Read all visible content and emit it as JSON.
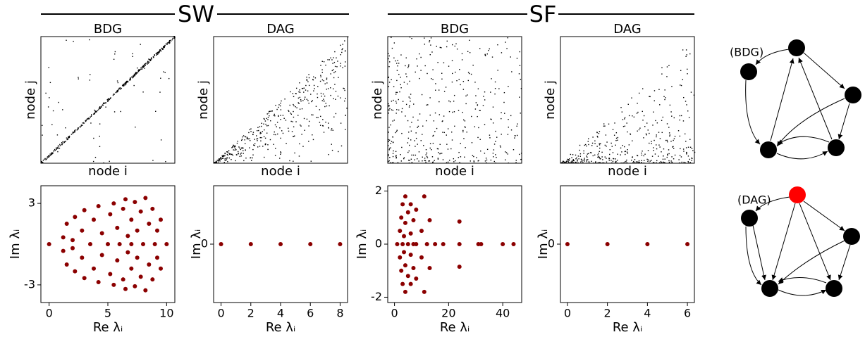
{
  "headers": [
    "SW",
    "SF"
  ],
  "diagrams": [
    {
      "label": "(BDG)"
    },
    {
      "label": "(DAG)"
    }
  ],
  "chart_data": [
    {
      "type": "matrix",
      "title": "BDG",
      "xlabel": "node i",
      "ylabel": "node j"
    },
    {
      "type": "matrix",
      "title": "DAG",
      "xlabel": "node i",
      "ylabel": "node j"
    },
    {
      "type": "matrix",
      "title": "BDG",
      "xlabel": "node i",
      "ylabel": "node j"
    },
    {
      "type": "matrix",
      "title": "DAG",
      "xlabel": "node i",
      "ylabel": "node j"
    },
    {
      "type": "scatter",
      "xlabel": "Re λᵢ",
      "ylabel": "Im λᵢ",
      "color": "#8b0000",
      "x": [
        0,
        1.2,
        1.2,
        1.5,
        1.5,
        2,
        2,
        2.2,
        2.2,
        2.8,
        2.8,
        3,
        3,
        3.5,
        3.8,
        3.8,
        4.2,
        4.2,
        4.5,
        4.5,
        5,
        5.2,
        5.2,
        5.5,
        5.5,
        5.8,
        5.8,
        6,
        6.3,
        6.3,
        6.5,
        6.5,
        6.7,
        6.7,
        7,
        7,
        7,
        7.3,
        7.3,
        7.5,
        7.5,
        7.8,
        7.8,
        8,
        8.2,
        8.2,
        8.5,
        8.5,
        8.8,
        8.8,
        9,
        9.2,
        9.2,
        9.5,
        9.5,
        10
      ],
      "y": [
        0,
        0.5,
        -0.5,
        1.5,
        -1.5,
        0.3,
        -0.3,
        2,
        -2,
        1,
        -1,
        2.5,
        -2.5,
        0,
        1.8,
        -1.8,
        2.8,
        -2.8,
        0.8,
        -0.8,
        0,
        2.2,
        -2.2,
        3,
        -3,
        1.2,
        -1.2,
        0,
        2.6,
        -2.6,
        3.3,
        -3.3,
        0.6,
        -0.6,
        1.8,
        -1.8,
        0,
        3.1,
        -3.1,
        1,
        -1,
        2.4,
        -2.4,
        0,
        3.4,
        -3.4,
        1.5,
        -1.5,
        2.6,
        -2.6,
        0,
        1,
        -1,
        1.8,
        -1.8,
        0
      ],
      "xlim": [
        -0.7,
        10.7
      ],
      "ylim": [
        -4.3,
        4.3
      ],
      "xticks": [
        0,
        5,
        10
      ],
      "yticks": [
        -3,
        3
      ]
    },
    {
      "type": "scatter",
      "xlabel": "Re λᵢ",
      "ylabel": "Im λᵢ",
      "color": "#8b0000",
      "x": [
        0,
        2,
        4,
        6,
        8
      ],
      "y": [
        0,
        0,
        0,
        0,
        0
      ],
      "xlim": [
        -0.5,
        8.5
      ],
      "ylim": [
        -1,
        1
      ],
      "xticks": [
        0,
        2,
        4,
        6,
        8
      ],
      "yticks": [
        0
      ]
    },
    {
      "type": "scatter",
      "xlabel": "Re λᵢ",
      "ylabel": "Im λᵢ",
      "color": "#8b0000",
      "x": [
        1,
        2,
        2,
        2.5,
        2.5,
        3,
        3,
        3,
        3.5,
        3.5,
        4,
        4,
        4,
        4,
        5,
        5,
        5,
        6,
        6,
        6,
        6,
        7,
        7,
        7,
        8,
        8,
        8,
        10,
        10,
        11,
        11,
        12,
        13,
        13,
        15,
        18,
        24,
        24,
        24,
        31,
        32,
        40,
        44
      ],
      "y": [
        0,
        0.5,
        -0.5,
        1,
        -1,
        0,
        1.5,
        -1.5,
        0.3,
        -0.3,
        1.8,
        -1.8,
        0.8,
        -0.8,
        0,
        1.2,
        -1.2,
        0.4,
        -0.4,
        1.5,
        -1.5,
        0,
        0.9,
        -0.9,
        0,
        1.3,
        -1.3,
        0.5,
        -0.5,
        1.8,
        -1.8,
        0,
        0.9,
        -0.9,
        0,
        0,
        0.85,
        -0.85,
        0,
        0,
        0,
        0,
        0
      ],
      "xlim": [
        -2.5,
        47
      ],
      "ylim": [
        -2.2,
        2.2
      ],
      "xticks": [
        0,
        20,
        40
      ],
      "yticks": [
        -2,
        0,
        2
      ]
    },
    {
      "type": "scatter",
      "xlabel": "Re λᵢ",
      "ylabel": "Im λᵢ",
      "color": "#8b0000",
      "x": [
        0,
        2,
        4,
        6
      ],
      "y": [
        0,
        0,
        0,
        0
      ],
      "xlim": [
        -0.35,
        6.35
      ],
      "ylim": [
        -1,
        1
      ],
      "xticks": [
        0,
        2,
        4,
        6
      ],
      "yticks": [
        0
      ]
    }
  ]
}
